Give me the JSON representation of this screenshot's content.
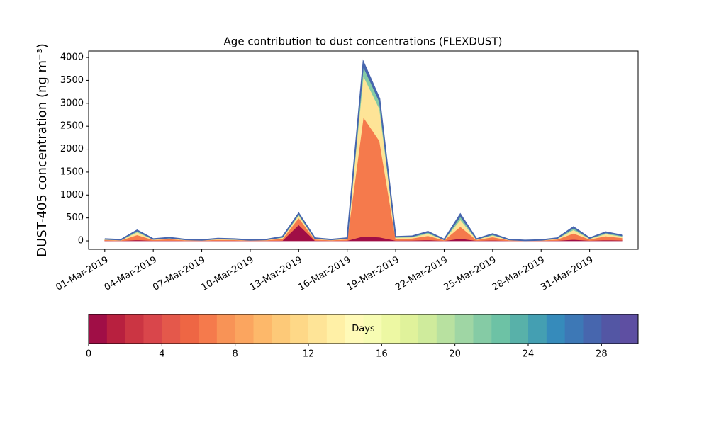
{
  "chart_data": {
    "type": "stacked_area",
    "title": "Age contribution to dust concentrations (FLEXDUST)",
    "y_label": "DUST-405 concentration (ng m⁻³)",
    "x": [
      "2019-03-01",
      "2019-03-02",
      "2019-03-03",
      "2019-03-04",
      "2019-03-05",
      "2019-03-06",
      "2019-03-07",
      "2019-03-08",
      "2019-03-09",
      "2019-03-10",
      "2019-03-11",
      "2019-03-12",
      "2019-03-13",
      "2019-03-14",
      "2019-03-15",
      "2019-03-16",
      "2019-03-17",
      "2019-03-18",
      "2019-03-19",
      "2019-03-20",
      "2019-03-21",
      "2019-03-22",
      "2019-03-23",
      "2019-03-24",
      "2019-03-25",
      "2019-03-26",
      "2019-03-27",
      "2019-03-28",
      "2019-03-29",
      "2019-03-30",
      "2019-03-31",
      "2019-04-01",
      "2019-04-02"
    ],
    "series": [
      {
        "color": "#a00e46",
        "values": [
          4,
          2,
          20,
          4,
          7,
          3,
          2,
          5,
          4,
          2,
          3,
          9,
          350,
          6,
          3,
          6,
          100,
          80,
          9,
          10,
          20,
          3,
          50,
          4,
          15,
          3,
          1,
          2,
          6,
          30,
          6,
          19,
          12
        ]
      },
      {
        "color": "#f57a4c",
        "values": [
          18,
          11,
          110,
          18,
          32,
          14,
          9,
          23,
          18,
          9,
          14,
          40,
          150,
          27,
          14,
          27,
          2600,
          2100,
          40,
          45,
          90,
          14,
          260,
          18,
          68,
          14,
          5,
          9,
          27,
          135,
          27,
          85,
          54
        ]
      },
      {
        "color": "#fee497",
        "values": [
          10,
          6,
          60,
          10,
          18,
          8,
          5,
          12,
          10,
          5,
          8,
          23,
          60,
          15,
          8,
          15,
          900,
          700,
          23,
          25,
          50,
          8,
          150,
          10,
          37,
          8,
          2,
          5,
          15,
          75,
          15,
          48,
          30
        ]
      },
      {
        "color": "#85cba5",
        "values": [
          5,
          3,
          25,
          5,
          8,
          3,
          2,
          6,
          5,
          2,
          3,
          11,
          25,
          7,
          3,
          7,
          200,
          150,
          11,
          12,
          24,
          3,
          70,
          5,
          18,
          3,
          1,
          2,
          7,
          36,
          7,
          23,
          14
        ]
      },
      {
        "color": "#4766ae",
        "values": [
          3,
          3,
          15,
          3,
          5,
          2,
          2,
          4,
          3,
          2,
          2,
          7,
          15,
          5,
          2,
          5,
          100,
          70,
          7,
          8,
          16,
          2,
          50,
          3,
          12,
          2,
          1,
          2,
          5,
          24,
          5,
          15,
          10
        ]
      }
    ],
    "xlim": [
      "2019-02-28",
      "2019-04-03"
    ],
    "xticks": [
      {
        "value": "2019-03-01",
        "label": "01-Mar-2019"
      },
      {
        "value": "2019-03-04",
        "label": "04-Mar-2019"
      },
      {
        "value": "2019-03-07",
        "label": "07-Mar-2019"
      },
      {
        "value": "2019-03-10",
        "label": "10-Mar-2019"
      },
      {
        "value": "2019-03-13",
        "label": "13-Mar-2019"
      },
      {
        "value": "2019-03-16",
        "label": "16-Mar-2019"
      },
      {
        "value": "2019-03-19",
        "label": "19-Mar-2019"
      },
      {
        "value": "2019-03-22",
        "label": "22-Mar-2019"
      },
      {
        "value": "2019-03-25",
        "label": "25-Mar-2019"
      },
      {
        "value": "2019-03-28",
        "label": "28-Mar-2019"
      },
      {
        "value": "2019-03-31",
        "label": "31-Mar-2019"
      }
    ],
    "ylim": [
      -185,
      4140
    ],
    "yticks": [
      0,
      500,
      1000,
      1500,
      2000,
      2500,
      3000,
      3500,
      4000
    ],
    "colorbar": {
      "label": "Days",
      "lim": [
        0,
        30
      ],
      "ticks": [
        0,
        4,
        8,
        12,
        16,
        20,
        24,
        28
      ],
      "colors": [
        "#a00e46",
        "#b8203f",
        "#cb3543",
        "#d9464b",
        "#e4584b",
        "#ee6644",
        "#f57a4c",
        "#f89356",
        "#fba55f",
        "#fdb86a",
        "#fdc978",
        "#fed887",
        "#fee497",
        "#fff0a6",
        "#fffab8",
        "#f7fcb3",
        "#edf8a3",
        "#e0f29b",
        "#cfeb9c",
        "#b8e1a0",
        "#9fd6a4",
        "#85cba5",
        "#6dc2a5",
        "#58b1a9",
        "#449fb2",
        "#368bbb",
        "#3d78b6",
        "#4766ae",
        "#5356a4",
        "#5e4fa2"
      ]
    }
  }
}
